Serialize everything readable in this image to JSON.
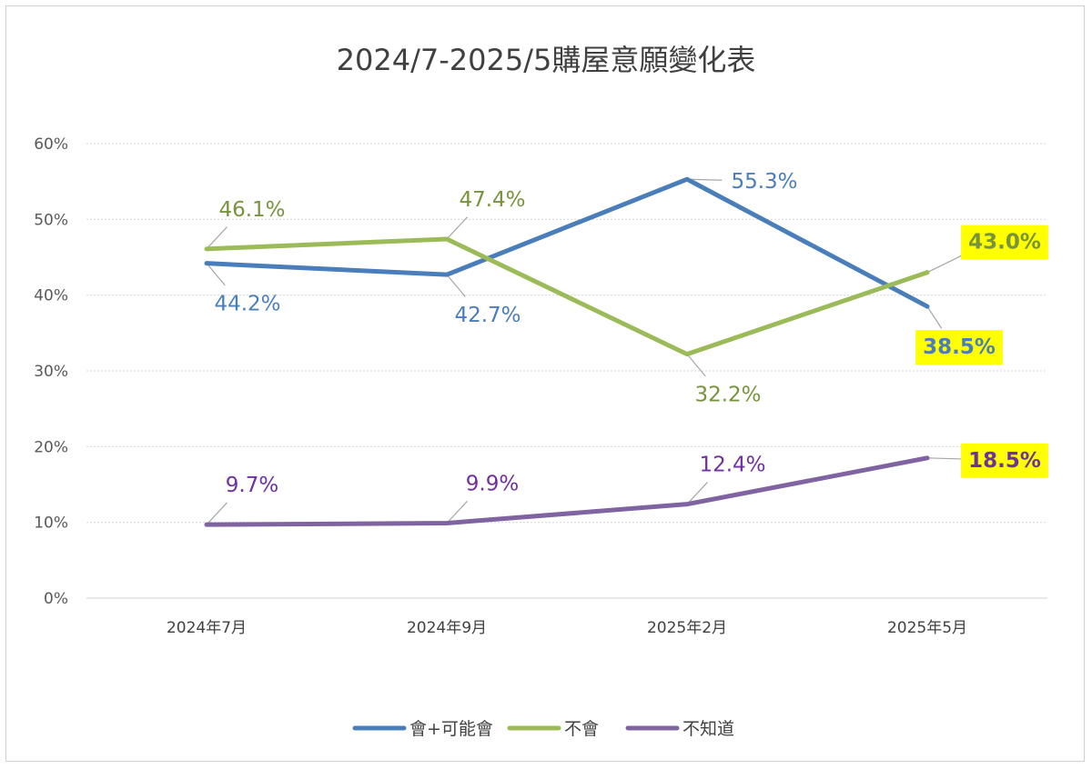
{
  "chart_data": {
    "type": "line",
    "title": "2024/7-2025/5購屋意願變化表",
    "categories": [
      "2024年7月",
      "2024年9月",
      "2025年2月",
      "2025年5月"
    ],
    "ylim": [
      0,
      60
    ],
    "yticks": [
      "0%",
      "10%",
      "20%",
      "30%",
      "40%",
      "50%",
      "60%"
    ],
    "ytick_values": [
      0,
      10,
      20,
      30,
      40,
      50,
      60
    ],
    "grid": true,
    "legend_position": "bottom",
    "series": [
      {
        "name": "會+可能會",
        "color": "#4a7ebb",
        "values": [
          44.2,
          42.7,
          55.3,
          38.5
        ],
        "labels": [
          "44.2%",
          "42.7%",
          "55.3%",
          "38.5%"
        ],
        "label_placement": [
          "below",
          "below",
          "right",
          "below"
        ],
        "highlight": [
          false,
          false,
          false,
          true
        ]
      },
      {
        "name": "不會",
        "color": "#9bbb59",
        "label_color": "#77933c",
        "values": [
          46.1,
          47.4,
          32.2,
          43.0
        ],
        "labels": [
          "46.1%",
          "47.4%",
          "32.2%",
          "43.0%"
        ],
        "label_placement": [
          "above",
          "above",
          "below",
          "above"
        ],
        "highlight": [
          false,
          false,
          false,
          true
        ]
      },
      {
        "name": "不知道",
        "color": "#8064a2",
        "label_color": "#7030a0",
        "values": [
          9.7,
          9.9,
          12.4,
          18.5
        ],
        "labels": [
          "9.7%",
          "9.9%",
          "12.4%",
          "18.5%"
        ],
        "label_placement": [
          "above",
          "above",
          "above",
          "right"
        ],
        "highlight": [
          false,
          false,
          false,
          true
        ]
      }
    ],
    "highlight_color": "#ffff00"
  }
}
